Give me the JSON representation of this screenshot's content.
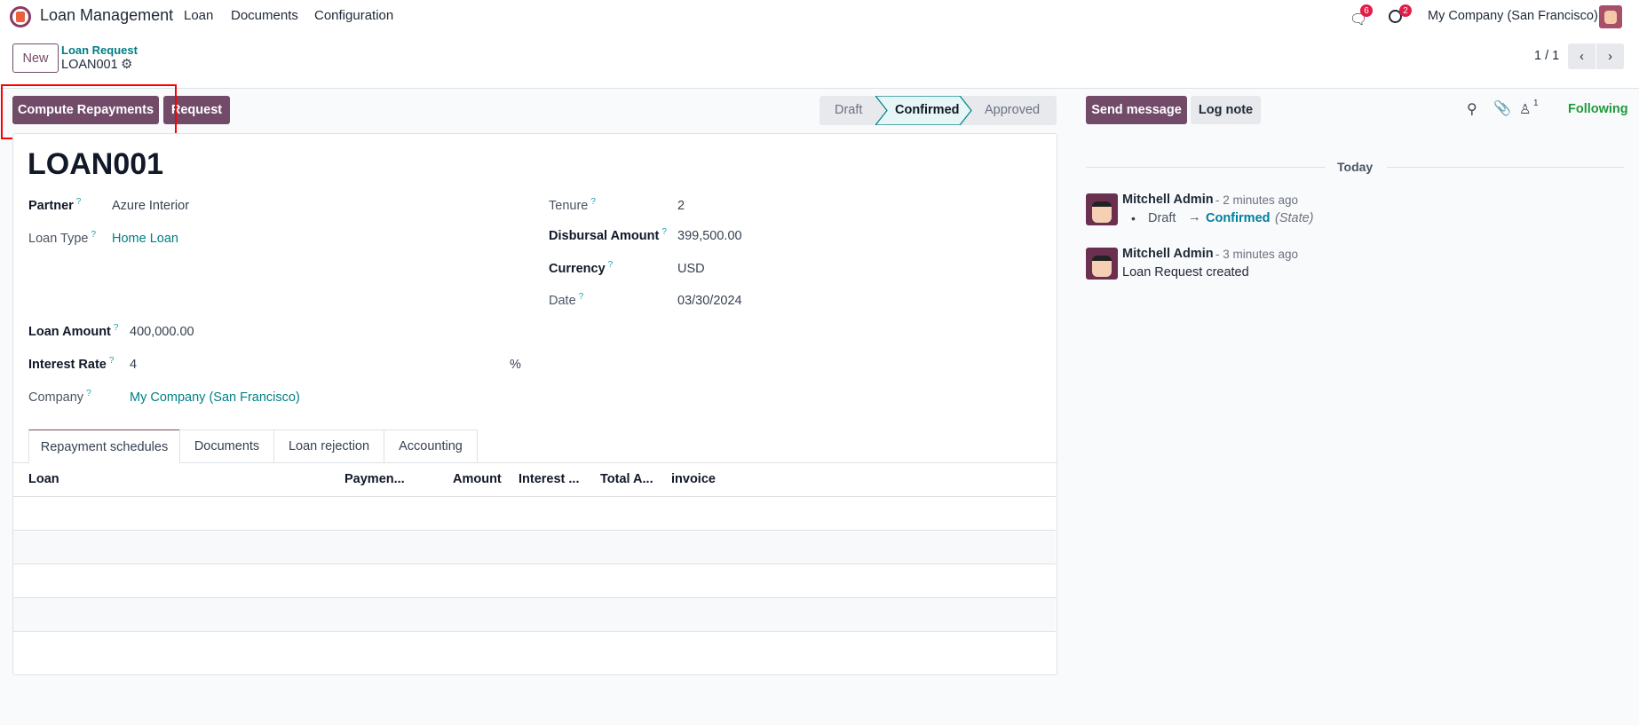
{
  "navbar": {
    "app_title": "Loan Management",
    "menus": [
      "Loan",
      "Documents",
      "Configuration"
    ],
    "messages_count": "6",
    "activities_count": "2",
    "company": "My Company (San Francisco)"
  },
  "control_panel": {
    "new_label": "New",
    "breadcrumb_parent": "Loan Request",
    "breadcrumb_current": "LOAN001",
    "pager": "1 / 1"
  },
  "actions": {
    "compute_label": "Compute Repayments",
    "request_label": "Request"
  },
  "statusbar": {
    "stages": [
      "Draft",
      "Confirmed",
      "Approved"
    ],
    "current": "Confirmed"
  },
  "form": {
    "title": "LOAN001",
    "left": [
      {
        "label": "Partner",
        "value": "Azure Interior"
      },
      {
        "label": "Loan Type",
        "value": "Home Loan"
      },
      {
        "label": "Loan Amount",
        "value": "400,000.00"
      },
      {
        "label": "Interest Rate",
        "value": "4",
        "suffix": "%"
      },
      {
        "label": "Company",
        "value": "My Company (San Francisco)"
      }
    ],
    "right": [
      {
        "label": "Tenure",
        "value": "2"
      },
      {
        "label": "Disbursal Amount",
        "value": "399,500.00"
      },
      {
        "label": "Currency",
        "value": "USD"
      },
      {
        "label": "Date",
        "value": "03/30/2024"
      }
    ],
    "help_mark": "?"
  },
  "tabs": [
    "Repayment schedules",
    "Documents",
    "Loan rejection",
    "Accounting"
  ],
  "active_tab": "Repayment schedules",
  "table": {
    "columns": [
      "Loan",
      "Paymen...",
      "Amount",
      "Interest ...",
      "Total A...",
      "invoice"
    ],
    "rows": []
  },
  "chatter": {
    "send_label": "Send message",
    "log_label": "Log note",
    "followers_count": "1",
    "following_label": "Following",
    "date_separator": "Today",
    "messages": [
      {
        "author": "Mitchell Admin",
        "time": "- 2 minutes ago",
        "from": "Draft",
        "arrow": "→",
        "to": "Confirmed",
        "field": "(State)"
      },
      {
        "author": "Mitchell Admin",
        "time": "- 3 minutes ago",
        "body": "Loan Request created"
      }
    ]
  },
  "colors": {
    "primary": "#714B67",
    "link": "#017e84",
    "following": "#1e9a3c",
    "badge": "#e11d48"
  }
}
